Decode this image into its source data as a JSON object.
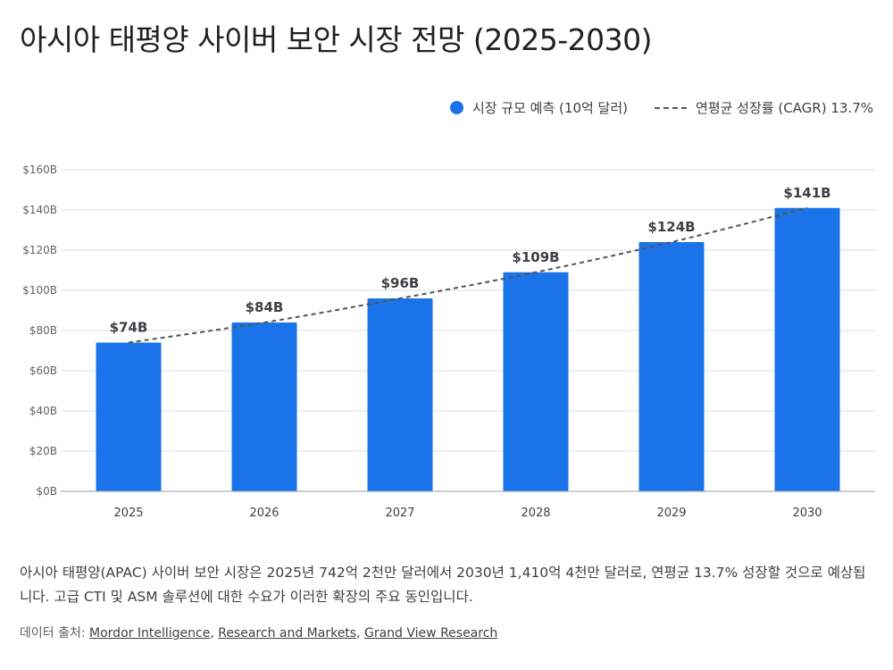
{
  "title": "아시아 태평양 사이버 보안 시장 전망 (2025-2030)",
  "colors": {
    "bar": "#1a73e8",
    "trend": "#555555",
    "grid": "#dadce0",
    "axis_text": "#5f6368"
  },
  "legend": {
    "bar_label": "시장 규모 예측 (10억 달러)",
    "line_label": "연평균 성장률 (CAGR) 13.7%"
  },
  "description": "아시아 태평양(APAC) 사이버 보안 시장은 2025년 742억 2천만 달러에서 2030년 1,410억 4천만 달러로, 연평균 13.7% 성장할 것으로 예상됩니다. 고급 CTI 및 ASM 솔루션에 대한 수요가 이러한 확장의 주요 동인입니다.",
  "source": {
    "prefix": "데이터 출처: ",
    "links": [
      "Mordor Intelligence",
      "Research and Markets",
      "Grand View Research"
    ],
    "separator": ", "
  },
  "chart_data": {
    "type": "bar",
    "categories": [
      "2025",
      "2026",
      "2027",
      "2028",
      "2029",
      "2030"
    ],
    "series": [
      {
        "name": "시장 규모 예측 (10억 달러)",
        "type": "bar",
        "values": [
          74,
          84,
          96,
          109,
          124,
          141
        ]
      },
      {
        "name": "연평균 성장률 (CAGR) 13.7%",
        "type": "line",
        "style": "dashed",
        "values": [
          74,
          84,
          96,
          109,
          124,
          141
        ]
      }
    ],
    "data_labels": [
      "$74B",
      "$84B",
      "$96B",
      "$109B",
      "$124B",
      "$141B"
    ],
    "ylim": [
      0,
      160
    ],
    "y_ticks": [
      0,
      20,
      40,
      60,
      80,
      100,
      120,
      140,
      160
    ],
    "y_tick_labels": [
      "$0B",
      "$20B",
      "$40B",
      "$60B",
      "$80B",
      "$100B",
      "$120B",
      "$140B",
      "$160B"
    ],
    "grid": true,
    "legend_position": "top-right"
  }
}
